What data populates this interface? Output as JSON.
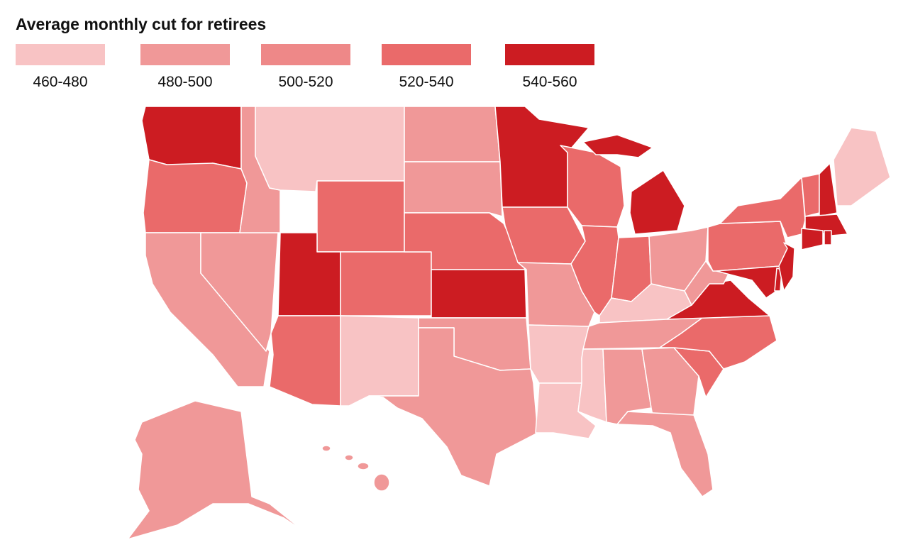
{
  "title": "Average monthly cut for retirees",
  "legend": [
    {
      "label": "460-480",
      "color": "#f8c3c4"
    },
    {
      "label": "480-500",
      "color": "#f09898"
    },
    {
      "label": "500-520",
      "color": "#ee8888"
    },
    {
      "label": "520-540",
      "color": "#ea6a6a"
    },
    {
      "label": "540-560",
      "color": "#cc1c22"
    }
  ]
}
